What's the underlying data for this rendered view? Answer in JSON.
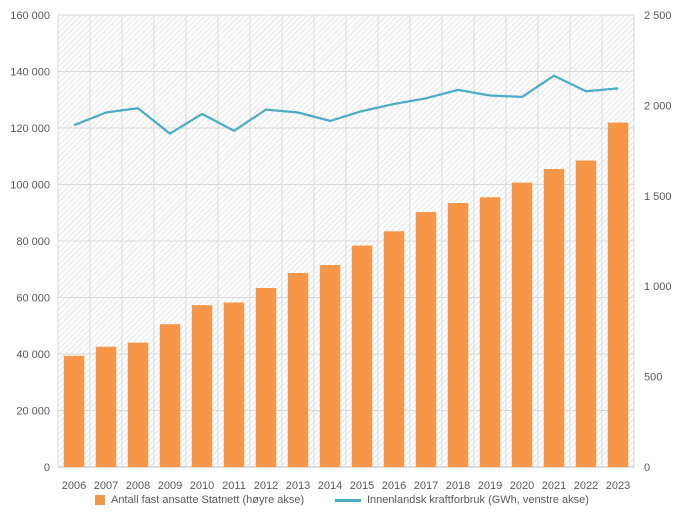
{
  "chart_data": {
    "type": "bar",
    "categories": [
      "2006",
      "2007",
      "2008",
      "2009",
      "2010",
      "2011",
      "2012",
      "2013",
      "2014",
      "2015",
      "2016",
      "2017",
      "2018",
      "2019",
      "2020",
      "2021",
      "2022",
      "2023"
    ],
    "series": [
      {
        "name": "Antall fast ansatte Statnett (høyre akse)",
        "type": "bar",
        "axis": "right",
        "color": "#F79646",
        "values": [
          615,
          665,
          688,
          790,
          895,
          910,
          990,
          1073,
          1117,
          1225,
          1304,
          1410,
          1460,
          1492,
          1573,
          1648,
          1695,
          1905
        ]
      },
      {
        "name": "Innenlandsk kraftforbruk (GWh, venstre akse)",
        "type": "line",
        "axis": "left",
        "color": "#4BACC6",
        "values": [
          121000,
          125500,
          127000,
          118000,
          125000,
          119000,
          126500,
          125500,
          122500,
          126000,
          128500,
          130500,
          133500,
          131500,
          131000,
          138500,
          133000,
          134000
        ]
      }
    ],
    "left_axis": {
      "ylim": [
        0,
        160000
      ],
      "ticks": [
        "0",
        "20 000",
        "40 000",
        "60 000",
        "80 000",
        "100 000",
        "120 000",
        "140 000",
        "160 000"
      ]
    },
    "right_axis": {
      "ylim": [
        0,
        2500
      ],
      "ticks": [
        "0",
        "500",
        "1 000",
        "1 500",
        "2 000",
        "2 500"
      ]
    },
    "grid": true,
    "legend_position": "bottom"
  },
  "colors": {
    "bar": "#F79646",
    "line": "#4BACC6",
    "grid": "#d9d9d9",
    "axis": "#bfbfbf"
  }
}
